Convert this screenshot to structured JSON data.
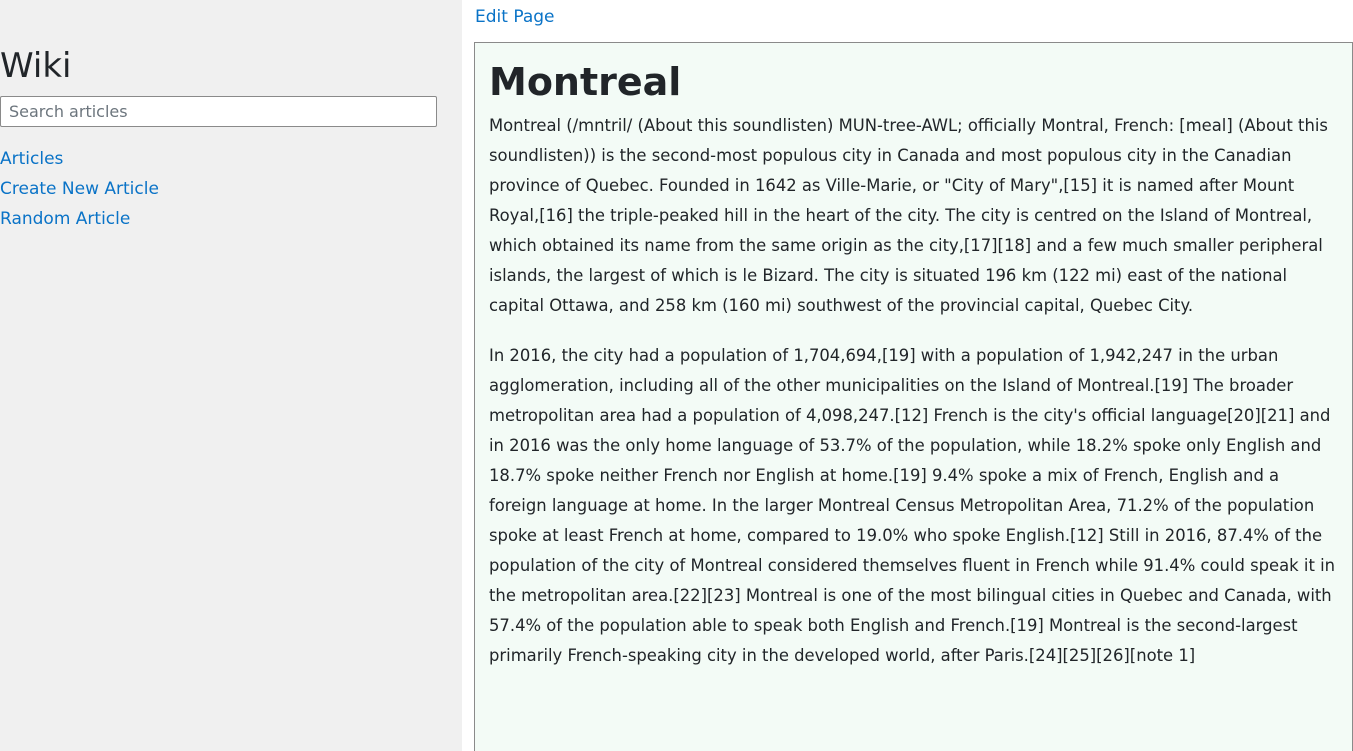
{
  "sidebar": {
    "title": "Wiki",
    "search": {
      "placeholder": "Search articles",
      "value": ""
    },
    "nav": [
      {
        "label": "Articles"
      },
      {
        "label": "Create New Article"
      },
      {
        "label": "Random Article"
      }
    ]
  },
  "toolbar": {
    "edit_label": "Edit Page"
  },
  "article": {
    "title": "Montreal",
    "paragraphs": [
      "Montreal (/mntril/ (About this soundlisten) MUN-tree-AWL; officially Montral, French: [meal] (About this soundlisten)) is the second-most populous city in Canada and most populous city in the Canadian province of Quebec. Founded in 1642 as Ville-Marie, or \"City of Mary\",[15] it is named after Mount Royal,[16] the triple-peaked hill in the heart of the city. The city is centred on the Island of Montreal, which obtained its name from the same origin as the city,[17][18] and a few much smaller peripheral islands, the largest of which is le Bizard. The city is situated 196 km (122 mi) east of the national capital Ottawa, and 258 km (160 mi) southwest of the provincial capital, Quebec City.",
      "In 2016, the city had a population of 1,704,694,[19] with a population of 1,942,247 in the urban agglomeration, including all of the other municipalities on the Island of Montreal.[19] The broader metropolitan area had a population of 4,098,247.[12] French is the city's official language[20][21] and in 2016 was the only home language of 53.7% of the population, while 18.2% spoke only English and 18.7% spoke neither French nor English at home.[19] 9.4% spoke a mix of French, English and a foreign language at home. In the larger Montreal Census Metropolitan Area, 71.2% of the population spoke at least French at home, compared to 19.0% who spoke English.[12] Still in 2016, 87.4% of the population of the city of Montreal considered themselves fluent in French while 91.4% could speak it in the metropolitan area.[22][23] Montreal is one of the most bilingual cities in Quebec and Canada, with 57.4% of the population able to speak both English and French.[19] Montreal is the second-largest primarily French-speaking city in the developed world, after Paris.[24][25][26][note 1]"
    ]
  }
}
